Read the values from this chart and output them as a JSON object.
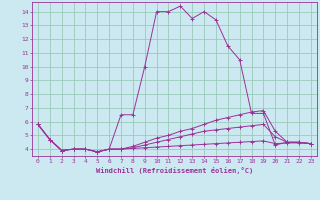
{
  "xlabel": "Windchill (Refroidissement éolien,°C)",
  "bg_color": "#cce8f0",
  "grid_color": "#99ccbb",
  "line_color": "#993399",
  "xlim": [
    -0.5,
    23.5
  ],
  "ylim": [
    3.5,
    14.7
  ],
  "xticks": [
    0,
    1,
    2,
    3,
    4,
    5,
    6,
    7,
    8,
    9,
    10,
    11,
    12,
    13,
    14,
    15,
    16,
    17,
    18,
    19,
    20,
    21,
    22,
    23
  ],
  "yticks": [
    4,
    5,
    6,
    7,
    8,
    9,
    10,
    11,
    12,
    13,
    14
  ],
  "series": [
    [
      5.8,
      4.7,
      3.9,
      4.0,
      4.0,
      3.8,
      4.0,
      6.5,
      6.5,
      10.0,
      14.0,
      14.0,
      14.4,
      13.5,
      14.0,
      13.4,
      11.5,
      10.5,
      6.6,
      6.6,
      4.3,
      4.5,
      4.5,
      4.4
    ],
    [
      5.8,
      4.7,
      3.9,
      4.0,
      4.0,
      3.8,
      4.0,
      4.0,
      4.2,
      4.5,
      4.8,
      5.0,
      5.3,
      5.5,
      5.8,
      6.1,
      6.3,
      6.5,
      6.7,
      6.8,
      5.3,
      4.5,
      4.5,
      4.4
    ],
    [
      5.8,
      4.7,
      3.9,
      4.0,
      4.0,
      3.8,
      4.0,
      4.0,
      4.1,
      4.3,
      4.5,
      4.7,
      4.9,
      5.1,
      5.3,
      5.4,
      5.5,
      5.6,
      5.7,
      5.8,
      4.9,
      4.5,
      4.5,
      4.4
    ],
    [
      5.8,
      4.7,
      3.9,
      4.0,
      4.0,
      3.8,
      4.0,
      4.0,
      4.05,
      4.1,
      4.15,
      4.2,
      4.25,
      4.3,
      4.35,
      4.4,
      4.45,
      4.5,
      4.55,
      4.6,
      4.4,
      4.45,
      4.45,
      4.4
    ]
  ]
}
